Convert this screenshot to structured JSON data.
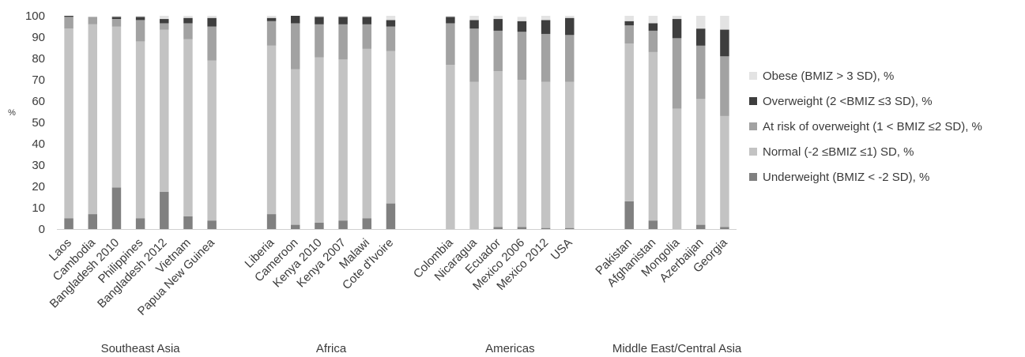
{
  "chart_data": {
    "type": "bar",
    "stacked": true,
    "ylabel": "%",
    "ylim": [
      0,
      100
    ],
    "yticks": [
      0,
      10,
      20,
      30,
      40,
      50,
      60,
      70,
      80,
      90,
      100
    ],
    "grid": false,
    "legend_position": "right",
    "groups": [
      {
        "label": "Southeast Asia",
        "categories": [
          "Laos",
          "Cambodia",
          "Bangladesh 2010",
          "Philippines",
          "Bangladesh 2012",
          "Vietnam",
          "Papua New Guinea"
        ]
      },
      {
        "label": "Africa",
        "categories": [
          "Liberia",
          "Cameroon",
          "Kenya 2010",
          "Kenya 2007",
          "Malawi",
          "Cote d'Ivoire"
        ]
      },
      {
        "label": "Americas",
        "categories": [
          "Colombia",
          "Nicaragua",
          "Ecuador",
          "Mexico 2006",
          "Mexico 2012",
          "USA"
        ]
      },
      {
        "label": "Middle East/Central Asia",
        "categories": [
          "Pakistan",
          "Afghanistan",
          "Mongolia",
          "Azerbaijan",
          "Georgia"
        ]
      }
    ],
    "series": [
      {
        "name": "Underweight (BMIZ < -2 SD), %",
        "color": "#808080",
        "values": [
          5,
          7,
          19.5,
          5,
          17.5,
          6,
          4,
          7,
          2,
          3,
          4,
          5,
          12,
          0,
          0,
          1,
          1,
          0.5,
          0.5,
          13,
          4,
          0,
          2,
          1
        ]
      },
      {
        "name": "Normal (-2 ≤BMIZ ≤1) SD, %",
        "color": "#c3c3c3",
        "values": [
          89,
          89,
          75.5,
          83,
          76,
          83,
          75,
          79,
          73,
          77.5,
          75.5,
          79.5,
          71.5,
          77,
          69,
          73,
          69,
          68.5,
          68.5,
          74,
          79,
          56.5,
          59,
          52
        ]
      },
      {
        "name": "At risk of overweight (1 < BMIZ ≤2 SD), %",
        "color": "#a2a2a2",
        "values": [
          5.5,
          3.5,
          3.5,
          10,
          3,
          7.5,
          16,
          11.5,
          21.5,
          15.5,
          16.5,
          11.5,
          11.5,
          19.5,
          25,
          19,
          22.5,
          22.5,
          22,
          8.5,
          10,
          33,
          25,
          28
        ]
      },
      {
        "name": "Overweight (2 <BMIZ ≤3 SD), %",
        "color": "#3e3e3e",
        "values": [
          0.5,
          0,
          1,
          1.5,
          2,
          2.5,
          4,
          1.5,
          3.5,
          3.5,
          3.5,
          3.5,
          3,
          3,
          4,
          5.5,
          5,
          6.5,
          8,
          2,
          3.5,
          9,
          8,
          12.5
        ]
      },
      {
        "name": "Obese (BMIZ > 3 SD), %",
        "color": "#e3e3e3",
        "values": [
          0,
          0,
          0.5,
          0.5,
          1.5,
          1,
          1,
          1,
          0,
          0.5,
          0.5,
          0.5,
          2,
          0.5,
          2,
          1.5,
          2,
          2,
          1,
          2.5,
          3.5,
          1.5,
          6,
          6.5
        ]
      }
    ]
  }
}
